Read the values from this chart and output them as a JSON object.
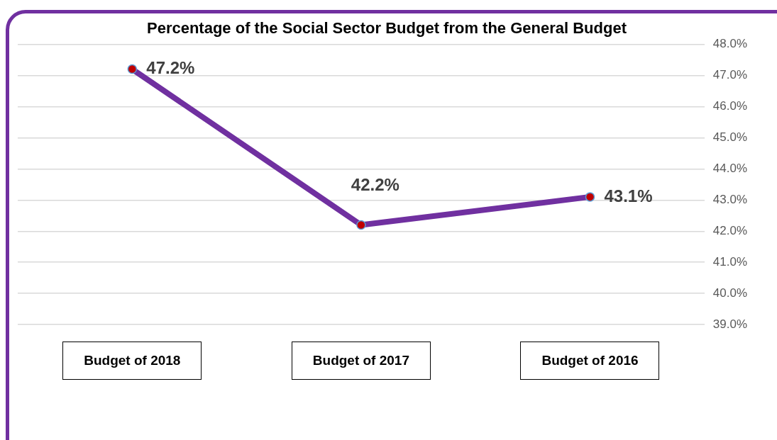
{
  "chart_data": {
    "type": "line",
    "title": "Percentage of the Social Sector Budget from the General Budget",
    "categories": [
      "Budget of 2018",
      "Budget of 2017",
      "Budget of 2016"
    ],
    "series": [
      {
        "color": "#7030a0",
        "values": [
          47.2,
          42.2,
          43.1
        ],
        "value_labels": [
          "47.2%",
          "42.2%",
          "43.1%"
        ]
      }
    ],
    "ylim": [
      39,
      48
    ],
    "yticks": [
      {
        "value": 39,
        "label": "39.0%"
      },
      {
        "value": 40,
        "label": "40.0%"
      },
      {
        "value": 41,
        "label": "41.0%"
      },
      {
        "value": 42,
        "label": "42.0%"
      },
      {
        "value": 43,
        "label": "43.0%"
      },
      {
        "value": 44,
        "label": "44.0%"
      },
      {
        "value": 45,
        "label": "45.0%"
      },
      {
        "value": 46,
        "label": "46.0%"
      },
      {
        "value": 47,
        "label": "47.0%"
      },
      {
        "value": 48,
        "label": "48.0%"
      }
    ],
    "grid": "y",
    "legend": false,
    "marker": "circle",
    "line_style": "solid"
  }
}
